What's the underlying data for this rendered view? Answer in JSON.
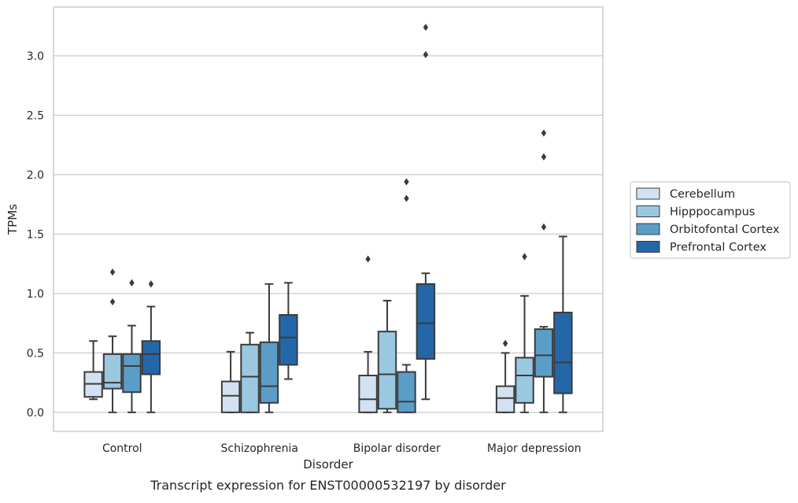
{
  "chart_data": {
    "type": "box",
    "xlabel": "Disorder",
    "ylabel": "TPMs",
    "caption": "Transcript expression for ENST00000532197 by disorder",
    "categories": [
      "Control",
      "Schizophrenia",
      "Bipolar disorder",
      "Major depression"
    ],
    "ylim": [
      -0.16,
      3.41
    ],
    "yticks": [
      0.0,
      0.5,
      1.0,
      1.5,
      2.0,
      2.5,
      3.0
    ],
    "ytick_labels": [
      "0.0",
      "0.5",
      "1.0",
      "1.5",
      "2.0",
      "2.5",
      "3.0"
    ],
    "grid": "horizontal",
    "legend_position": "right",
    "series": [
      {
        "name": "Cerebellum",
        "color": "#d2e2f2",
        "boxes": [
          {
            "min": 0.11,
            "q1": 0.13,
            "median": 0.24,
            "q3": 0.34,
            "max": 0.6,
            "outliers": []
          },
          {
            "min": 0.0,
            "q1": 0.0,
            "median": 0.14,
            "q3": 0.26,
            "max": 0.51,
            "outliers": []
          },
          {
            "min": 0.0,
            "q1": 0.0,
            "median": 0.11,
            "q3": 0.31,
            "max": 0.51,
            "outliers": [
              1.29
            ]
          },
          {
            "min": 0.0,
            "q1": 0.0,
            "median": 0.12,
            "q3": 0.22,
            "max": 0.5,
            "outliers": [
              0.58
            ]
          }
        ]
      },
      {
        "name": "Hipppocampus",
        "color": "#9ac8e0",
        "boxes": [
          {
            "min": 0.0,
            "q1": 0.2,
            "median": 0.25,
            "q3": 0.49,
            "max": 0.64,
            "outliers": [
              0.93,
              1.18
            ]
          },
          {
            "min": 0.0,
            "q1": 0.0,
            "median": 0.3,
            "q3": 0.57,
            "max": 0.67,
            "outliers": []
          },
          {
            "min": 0.0,
            "q1": 0.03,
            "median": 0.32,
            "q3": 0.68,
            "max": 0.94,
            "outliers": []
          },
          {
            "min": 0.0,
            "q1": 0.08,
            "median": 0.31,
            "q3": 0.46,
            "max": 0.98,
            "outliers": [
              1.31
            ]
          }
        ]
      },
      {
        "name": "Orbitofontal Cortex",
        "color": "#5a9ec8",
        "boxes": [
          {
            "min": 0.0,
            "q1": 0.17,
            "median": 0.39,
            "q3": 0.49,
            "max": 0.73,
            "outliers": [
              1.09
            ]
          },
          {
            "min": 0.0,
            "q1": 0.08,
            "median": 0.22,
            "q3": 0.59,
            "max": 1.08,
            "outliers": []
          },
          {
            "min": 0.0,
            "q1": 0.0,
            "median": 0.09,
            "q3": 0.34,
            "max": 0.4,
            "outliers": [
              1.8,
              1.94
            ]
          },
          {
            "min": 0.0,
            "q1": 0.3,
            "median": 0.48,
            "q3": 0.7,
            "max": 0.72,
            "outliers": [
              1.56,
              2.15,
              2.35
            ]
          }
        ]
      },
      {
        "name": "Prefrontal Cortex",
        "color": "#2467a8",
        "boxes": [
          {
            "min": 0.0,
            "q1": 0.32,
            "median": 0.49,
            "q3": 0.6,
            "max": 0.89,
            "outliers": [
              1.08
            ]
          },
          {
            "min": 0.28,
            "q1": 0.4,
            "median": 0.63,
            "q3": 0.82,
            "max": 1.09,
            "outliers": []
          },
          {
            "min": 0.11,
            "q1": 0.45,
            "median": 0.75,
            "q3": 1.08,
            "max": 1.17,
            "outliers": [
              3.01,
              3.24
            ]
          },
          {
            "min": 0.0,
            "q1": 0.16,
            "median": 0.42,
            "q3": 0.84,
            "max": 1.48,
            "outliers": []
          }
        ]
      }
    ]
  }
}
